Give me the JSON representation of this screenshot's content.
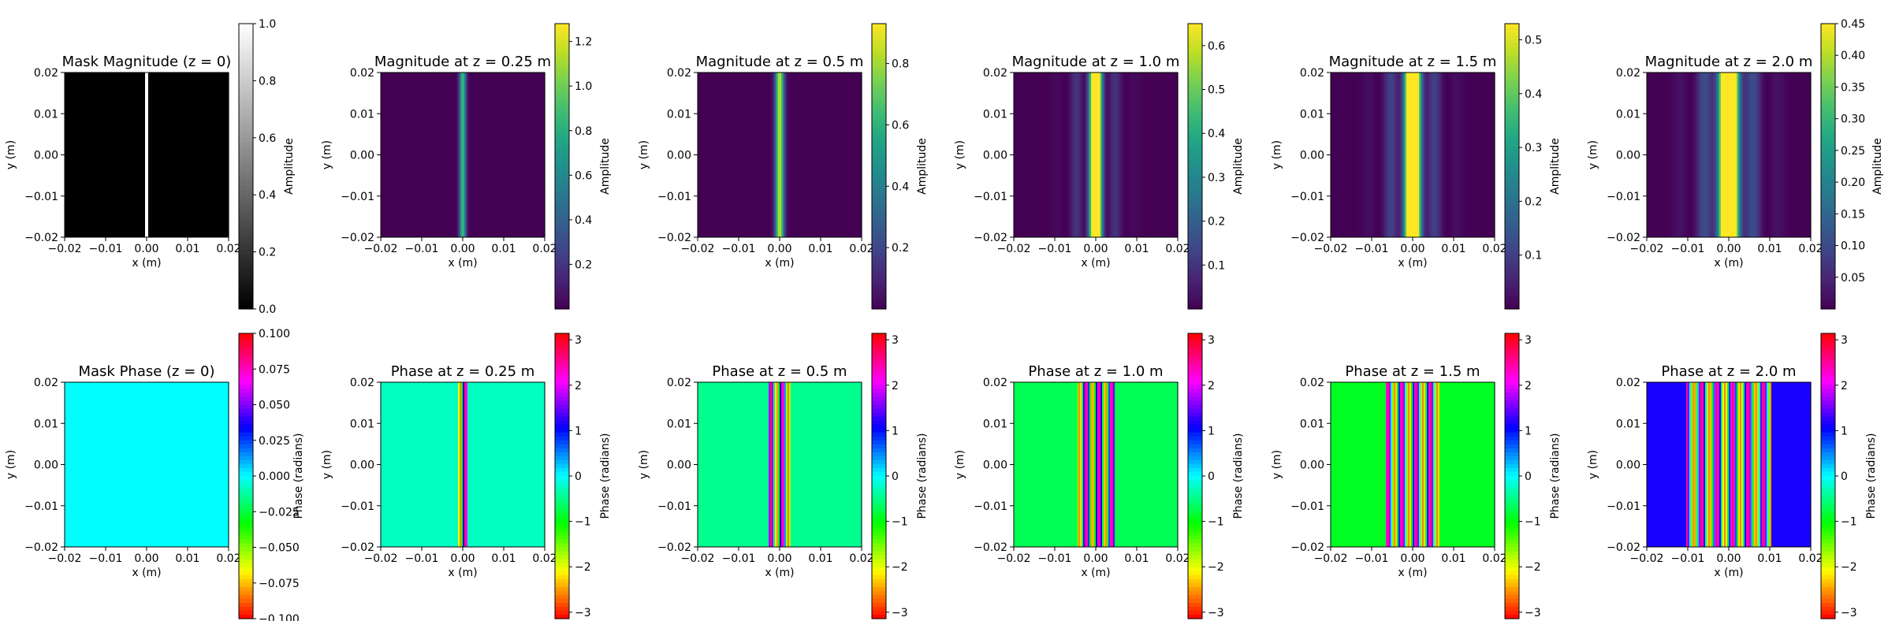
{
  "chart_data": [
    {
      "type": "heatmap",
      "kind": "mask_mag",
      "title": "Mask Magnitude (z = 0)",
      "xlabel": "x (m)",
      "ylabel": "y (m)",
      "xlim": [
        -0.02,
        0.02
      ],
      "ylim": [
        -0.02,
        0.02
      ],
      "xticks": [
        "−0.02",
        "−0.01",
        "0.00",
        "0.01",
        "0.02"
      ],
      "yticks": [
        "0.02",
        "0.01",
        "0.00",
        "−0.01",
        "−0.02"
      ],
      "colormap": "gray",
      "colorbar": {
        "label": "Amplitude",
        "range": [
          0,
          1.0
        ],
        "ticks": [
          "0.0",
          "0.2",
          "0.4",
          "0.6",
          "0.8",
          "1.0"
        ]
      }
    },
    {
      "type": "heatmap",
      "kind": "mag",
      "title": "Magnitude at z = 0.25 m",
      "xlabel": "x (m)",
      "ylabel": "y (m)",
      "xlim": [
        -0.02,
        0.02
      ],
      "ylim": [
        -0.02,
        0.02
      ],
      "xticks": [
        "−0.02",
        "−0.01",
        "0.00",
        "0.01",
        "0.02"
      ],
      "yticks": [
        "0.02",
        "0.01",
        "0.00",
        "−0.01",
        "−0.02"
      ],
      "colormap": "viridis",
      "colorbar": {
        "label": "Amplitude",
        "range": [
          0,
          1.28
        ],
        "ticks": [
          "0.2",
          "0.4",
          "0.6",
          "0.8",
          "1.0",
          "1.2"
        ]
      }
    },
    {
      "type": "heatmap",
      "kind": "mag",
      "title": "Magnitude at z = 0.5 m",
      "xlabel": "x (m)",
      "ylabel": "y (m)",
      "xlim": [
        -0.02,
        0.02
      ],
      "ylim": [
        -0.02,
        0.02
      ],
      "xticks": [
        "−0.02",
        "−0.01",
        "0.00",
        "0.01",
        "0.02"
      ],
      "yticks": [
        "0.02",
        "0.01",
        "0.00",
        "−0.01",
        "−0.02"
      ],
      "colormap": "viridis",
      "colorbar": {
        "label": "Amplitude",
        "range": [
          0,
          0.93
        ],
        "ticks": [
          "0.2",
          "0.4",
          "0.6",
          "0.8"
        ]
      }
    },
    {
      "type": "heatmap",
      "kind": "mag",
      "title": "Magnitude at z = 1.0 m",
      "xlabel": "x (m)",
      "ylabel": "y (m)",
      "xlim": [
        -0.02,
        0.02
      ],
      "ylim": [
        -0.02,
        0.02
      ],
      "xticks": [
        "−0.02",
        "−0.01",
        "0.00",
        "0.01",
        "0.02"
      ],
      "yticks": [
        "0.02",
        "0.01",
        "0.00",
        "−0.01",
        "−0.02"
      ],
      "colormap": "viridis",
      "colorbar": {
        "label": "Amplitude",
        "range": [
          0,
          0.65
        ],
        "ticks": [
          "0.1",
          "0.2",
          "0.3",
          "0.4",
          "0.5",
          "0.6"
        ]
      }
    },
    {
      "type": "heatmap",
      "kind": "mag",
      "title": "Magnitude at z = 1.5 m",
      "xlabel": "x (m)",
      "ylabel": "y (m)",
      "xlim": [
        -0.02,
        0.02
      ],
      "ylim": [
        -0.02,
        0.02
      ],
      "xticks": [
        "−0.02",
        "−0.01",
        "0.00",
        "0.01",
        "0.02"
      ],
      "yticks": [
        "0.02",
        "0.01",
        "0.00",
        "−0.01",
        "−0.02"
      ],
      "colormap": "viridis",
      "colorbar": {
        "label": "Amplitude",
        "range": [
          0,
          0.53
        ],
        "ticks": [
          "0.1",
          "0.2",
          "0.3",
          "0.4",
          "0.5"
        ]
      }
    },
    {
      "type": "heatmap",
      "kind": "mag",
      "title": "Magnitude at z = 2.0 m",
      "xlabel": "x (m)",
      "ylabel": "y (m)",
      "xlim": [
        -0.02,
        0.02
      ],
      "ylim": [
        -0.02,
        0.02
      ],
      "xticks": [
        "−0.02",
        "−0.01",
        "0.00",
        "0.01",
        "0.02"
      ],
      "yticks": [
        "0.02",
        "0.01",
        "0.00",
        "−0.01",
        "−0.02"
      ],
      "colormap": "viridis",
      "colorbar": {
        "label": "Amplitude",
        "range": [
          0,
          0.45
        ],
        "ticks": [
          "0.05",
          "0.10",
          "0.15",
          "0.20",
          "0.25",
          "0.30",
          "0.35",
          "0.40",
          "0.45"
        ]
      }
    },
    {
      "type": "heatmap",
      "kind": "mask_phase",
      "title": "Mask Phase (z = 0)",
      "xlabel": "x (m)",
      "ylabel": "y (m)",
      "xlim": [
        -0.02,
        0.02
      ],
      "ylim": [
        -0.02,
        0.02
      ],
      "xticks": [
        "−0.02",
        "−0.01",
        "0.00",
        "0.01",
        "0.02"
      ],
      "yticks": [
        "0.02",
        "0.01",
        "0.00",
        "−0.01",
        "−0.02"
      ],
      "colormap": "hsv",
      "colorbar": {
        "label": "Phase (radians)",
        "range": [
          -0.1,
          0.1
        ],
        "ticks": [
          "0.100",
          "0.075",
          "0.050",
          "0.025",
          "0.000",
          "−0.025",
          "−0.050",
          "−0.075",
          "−0.100"
        ]
      }
    },
    {
      "type": "heatmap",
      "kind": "phase",
      "title": "Phase at z = 0.25 m",
      "xlabel": "x (m)",
      "ylabel": "y (m)",
      "xlim": [
        -0.02,
        0.02
      ],
      "ylim": [
        -0.02,
        0.02
      ],
      "xticks": [
        "−0.02",
        "−0.01",
        "0.00",
        "0.01",
        "0.02"
      ],
      "yticks": [
        "0.02",
        "0.01",
        "0.00",
        "−0.01",
        "−0.02"
      ],
      "colormap": "hsv",
      "colorbar": {
        "label": "Phase (radians)",
        "range": [
          -3.14159,
          3.14159
        ],
        "ticks": [
          "3",
          "2",
          "1",
          "0",
          "−1",
          "−2",
          "−3"
        ]
      }
    },
    {
      "type": "heatmap",
      "kind": "phase",
      "title": "Phase at z = 0.5 m",
      "xlabel": "x (m)",
      "ylabel": "y (m)",
      "xlim": [
        -0.02,
        0.02
      ],
      "ylim": [
        -0.02,
        0.02
      ],
      "xticks": [
        "−0.02",
        "−0.01",
        "0.00",
        "0.01",
        "0.02"
      ],
      "yticks": [
        "0.02",
        "0.01",
        "0.00",
        "−0.01",
        "−0.02"
      ],
      "colormap": "hsv",
      "colorbar": {
        "label": "Phase (radians)",
        "range": [
          -3.14159,
          3.14159
        ],
        "ticks": [
          "3",
          "2",
          "1",
          "0",
          "−1",
          "−2",
          "−3"
        ]
      }
    },
    {
      "type": "heatmap",
      "kind": "phase",
      "title": "Phase at z = 1.0 m",
      "xlabel": "x (m)",
      "ylabel": "y (m)",
      "xlim": [
        -0.02,
        0.02
      ],
      "ylim": [
        -0.02,
        0.02
      ],
      "xticks": [
        "−0.02",
        "−0.01",
        "0.00",
        "0.01",
        "0.02"
      ],
      "yticks": [
        "0.02",
        "0.01",
        "0.00",
        "−0.01",
        "−0.02"
      ],
      "colormap": "hsv",
      "colorbar": {
        "label": "Phase (radians)",
        "range": [
          -3.14159,
          3.14159
        ],
        "ticks": [
          "3",
          "2",
          "1",
          "0",
          "−1",
          "−2",
          "−3"
        ]
      }
    },
    {
      "type": "heatmap",
      "kind": "phase",
      "title": "Phase at z = 1.5 m",
      "xlabel": "x (m)",
      "ylabel": "y (m)",
      "xlim": [
        -0.02,
        0.02
      ],
      "ylim": [
        -0.02,
        0.02
      ],
      "xticks": [
        "−0.02",
        "−0.01",
        "0.00",
        "0.01",
        "0.02"
      ],
      "yticks": [
        "0.02",
        "0.01",
        "0.00",
        "−0.01",
        "−0.02"
      ],
      "colormap": "hsv",
      "colorbar": {
        "label": "Phase (radians)",
        "range": [
          -3.14159,
          3.14159
        ],
        "ticks": [
          "3",
          "2",
          "1",
          "0",
          "−1",
          "−2",
          "−3"
        ]
      }
    },
    {
      "type": "heatmap",
      "kind": "phase",
      "title": "Phase at z = 2.0 m",
      "xlabel": "x (m)",
      "ylabel": "y (m)",
      "xlim": [
        -0.02,
        0.02
      ],
      "ylim": [
        -0.02,
        0.02
      ],
      "xticks": [
        "−0.02",
        "−0.01",
        "0.00",
        "0.01",
        "0.02"
      ],
      "yticks": [
        "0.02",
        "0.01",
        "0.00",
        "−0.01",
        "−0.02"
      ],
      "colormap": "hsv",
      "colorbar": {
        "label": "Phase (radians)",
        "range": [
          -3.14159,
          3.14159
        ],
        "ticks": [
          "3",
          "2",
          "1",
          "0",
          "−1",
          "−2",
          "−3"
        ]
      }
    }
  ]
}
